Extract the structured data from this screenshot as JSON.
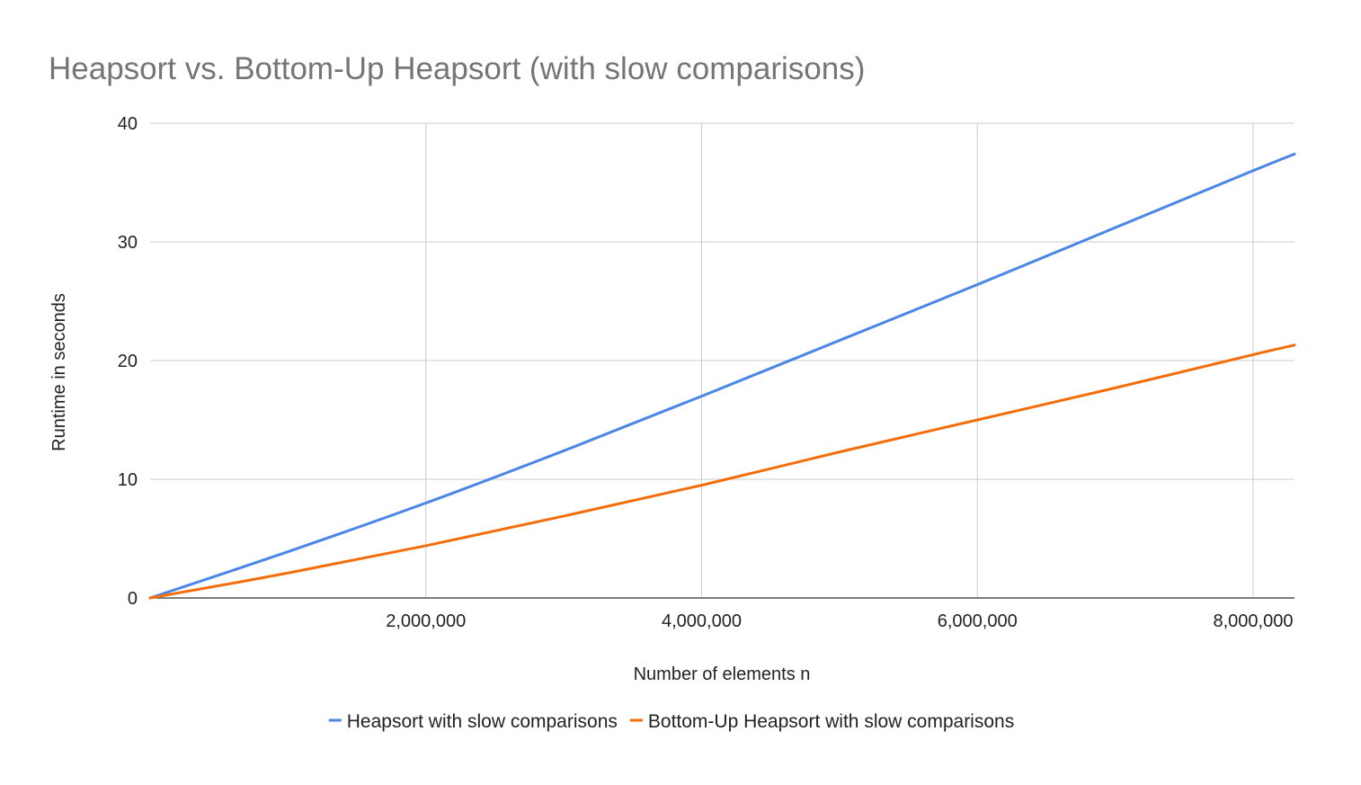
{
  "chart_data": {
    "type": "line",
    "title": "Heapsort vs. Bottom-Up Heapsort (with slow comparisons)",
    "xlabel": "Number of elements n",
    "ylabel": "Runtime in seconds",
    "xlim": [
      0,
      8300000
    ],
    "ylim": [
      0,
      40
    ],
    "x_ticks": [
      2000000,
      4000000,
      6000000,
      8000000
    ],
    "x_tick_labels": [
      "2,000,000",
      "4,000,000",
      "6,000,000",
      "8,000,000"
    ],
    "y_ticks": [
      0,
      10,
      20,
      30,
      40
    ],
    "y_tick_labels": [
      "0",
      "10",
      "20",
      "30",
      "40"
    ],
    "grid": true,
    "legend_position": "bottom",
    "x": [
      0,
      1000000,
      2000000,
      3000000,
      4000000,
      5000000,
      6000000,
      7000000,
      8000000,
      8300000
    ],
    "series": [
      {
        "name": "Heapsort with slow comparisons",
        "color": "#4a86e8",
        "values": [
          0,
          3.9,
          8.0,
          12.4,
          17.0,
          21.7,
          26.4,
          31.2,
          36.0,
          37.4
        ]
      },
      {
        "name": "Bottom-Up Heapsort with slow comparisons",
        "color": "#f46d0b",
        "values": [
          0,
          2.1,
          4.4,
          6.9,
          9.5,
          12.3,
          15.0,
          17.7,
          20.5,
          21.3
        ]
      }
    ]
  }
}
